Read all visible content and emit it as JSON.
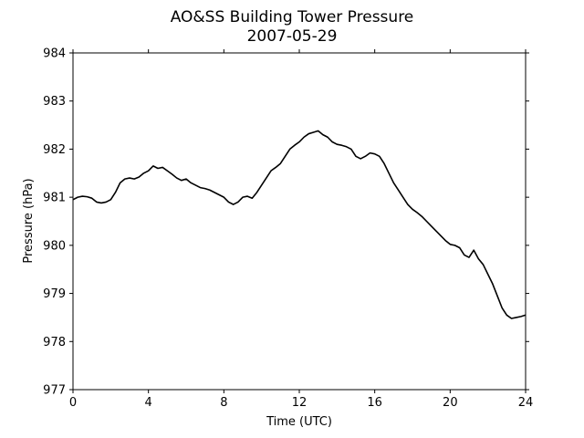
{
  "chart_data": {
    "type": "line",
    "title": "AO&SS Building Tower Pressure",
    "subtitle": "2007-05-29",
    "xlabel": "Time (UTC)",
    "ylabel": "Pressure (hPa)",
    "xlim": [
      0,
      24
    ],
    "ylim": [
      977,
      984
    ],
    "xticks": [
      0,
      4,
      8,
      12,
      16,
      20,
      24
    ],
    "yticks": [
      977,
      978,
      979,
      980,
      981,
      982,
      983,
      984
    ],
    "grid": false,
    "line_color": "#000000",
    "series": [
      {
        "x": [
          0,
          0.25,
          0.5,
          0.75,
          1.0,
          1.25,
          1.5,
          1.75,
          2.0,
          2.25,
          2.5,
          2.75,
          3.0,
          3.25,
          3.5,
          3.75,
          4.0,
          4.25,
          4.5,
          4.75,
          5.0,
          5.25,
          5.5,
          5.75,
          6.0,
          6.25,
          6.5,
          6.75,
          7.0,
          7.25,
          7.5,
          7.75,
          8.0,
          8.25,
          8.5,
          8.75,
          9.0,
          9.25,
          9.5,
          9.75,
          10.0,
          10.25,
          10.5,
          10.75,
          11.0,
          11.25,
          11.5,
          11.75,
          12.0,
          12.25,
          12.5,
          12.75,
          13.0,
          13.25,
          13.5,
          13.75,
          14.0,
          14.25,
          14.5,
          14.75,
          15.0,
          15.25,
          15.5,
          15.75,
          16.0,
          16.25,
          16.5,
          16.75,
          17.0,
          17.25,
          17.5,
          17.75,
          18.0,
          18.25,
          18.5,
          18.75,
          19.0,
          19.25,
          19.5,
          19.75,
          20.0,
          20.25,
          20.5,
          20.75,
          21.0,
          21.25,
          21.5,
          21.75,
          22.0,
          22.25,
          22.5,
          22.75,
          23.0,
          23.25,
          23.5,
          23.75,
          24.0
        ],
        "y": [
          980.95,
          981.0,
          981.02,
          981.01,
          980.98,
          980.9,
          980.88,
          980.9,
          980.95,
          981.1,
          981.3,
          981.38,
          981.4,
          981.38,
          981.42,
          981.5,
          981.55,
          981.65,
          981.6,
          981.62,
          981.55,
          981.48,
          981.4,
          981.35,
          981.38,
          981.3,
          981.25,
          981.2,
          981.18,
          981.15,
          981.1,
          981.05,
          981.0,
          980.9,
          980.85,
          980.9,
          981.0,
          981.02,
          980.98,
          981.1,
          981.25,
          981.4,
          981.55,
          981.62,
          981.7,
          981.85,
          982.0,
          982.08,
          982.15,
          982.25,
          982.32,
          982.35,
          982.38,
          982.3,
          982.25,
          982.15,
          982.1,
          982.08,
          982.05,
          982.0,
          981.85,
          981.8,
          981.85,
          981.92,
          981.9,
          981.85,
          981.7,
          981.5,
          981.3,
          981.15,
          981.0,
          980.85,
          980.75,
          980.68,
          980.6,
          980.5,
          980.4,
          980.3,
          980.2,
          980.1,
          980.02,
          980.0,
          979.95,
          979.8,
          979.75,
          979.9,
          979.72,
          979.6,
          979.4,
          979.2,
          978.95,
          978.7,
          978.55,
          978.48,
          978.5,
          978.52,
          978.55
        ]
      }
    ]
  }
}
